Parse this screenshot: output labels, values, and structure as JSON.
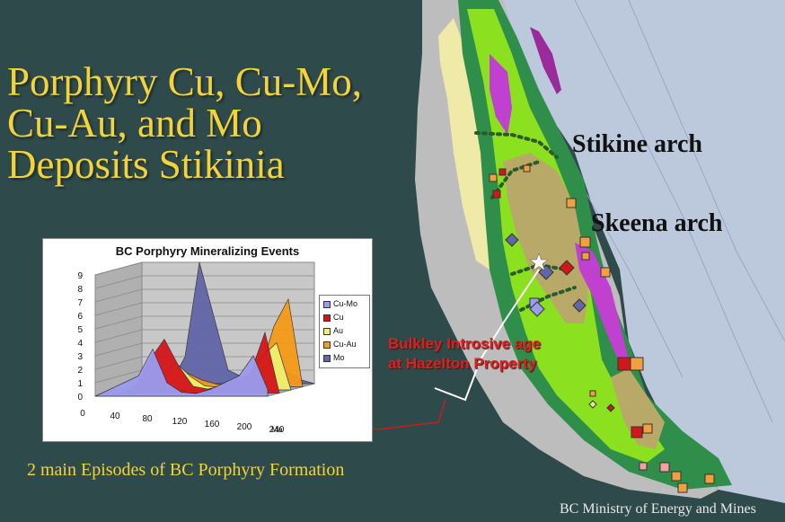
{
  "title": {
    "line1": "Porphyry Cu, Cu-Mo,",
    "line2": "Cu-Au, and Mo",
    "line3": "Deposits Stikinia"
  },
  "map_labels": {
    "stikine": "Stikine arch",
    "skeena": "Skeena arch",
    "bulkley_line1": "Bulkley Introsive age",
    "bulkley_line2": "at Hazelton Property"
  },
  "subtitle": "2 main Episodes of  BC Porphyry Formation",
  "credit": "BC Ministry of Energy and Mines",
  "chart_data": {
    "type": "area",
    "title": "BC Porphyry Mineralizing Events",
    "x_ticks": [
      "0",
      "40",
      "80",
      "120",
      "160",
      "200",
      "240"
    ],
    "x_unit": "Ma",
    "y_ticks": [
      "0",
      "1",
      "2",
      "3",
      "4",
      "5",
      "6",
      "7",
      "8",
      "9"
    ],
    "ylim": [
      0,
      9
    ],
    "x": [
      0,
      20,
      40,
      60,
      80,
      100,
      120,
      140,
      160,
      180,
      200,
      220,
      240
    ],
    "series": [
      {
        "name": "Cu-Mo",
        "color": "#9a9cf0",
        "values": [
          0,
          0.5,
          1,
          1.5,
          3.5,
          1,
          0.3,
          0.2,
          0.5,
          1,
          1.5,
          3,
          0.5
        ]
      },
      {
        "name": "Cu",
        "color": "#d4151a",
        "values": [
          0,
          0,
          0.5,
          2.5,
          4,
          2,
          0.5,
          0.3,
          0.5,
          1,
          1.5,
          4.5,
          0
        ]
      },
      {
        "name": "Au",
        "color": "#f0f070",
        "values": [
          0,
          0,
          0.3,
          1,
          2,
          1,
          0.3,
          0.2,
          0.5,
          0.8,
          2.5,
          3.5,
          0
        ]
      },
      {
        "name": "Cu-Au",
        "color": "#f59a18",
        "values": [
          0,
          0,
          0,
          0.5,
          1,
          0.5,
          0.2,
          0.2,
          0.5,
          1,
          4.5,
          6.5,
          0
        ]
      },
      {
        "name": "Mo",
        "color": "#6265a8",
        "values": [
          0,
          0,
          0,
          2,
          9,
          5,
          1,
          0.5,
          1,
          2.5,
          1,
          0.3,
          0
        ]
      }
    ]
  },
  "colors": {
    "background": "#2f4a4a",
    "title": "#f2d43a",
    "ocean_right": "#bcc9dc",
    "land_grey": "#bdbdbd",
    "green_light": "#8be01f",
    "green_dark": "#2f8e4a",
    "purple": "#c040d0",
    "olive": "#b9a968",
    "pale_yellow": "#efeaa8"
  }
}
